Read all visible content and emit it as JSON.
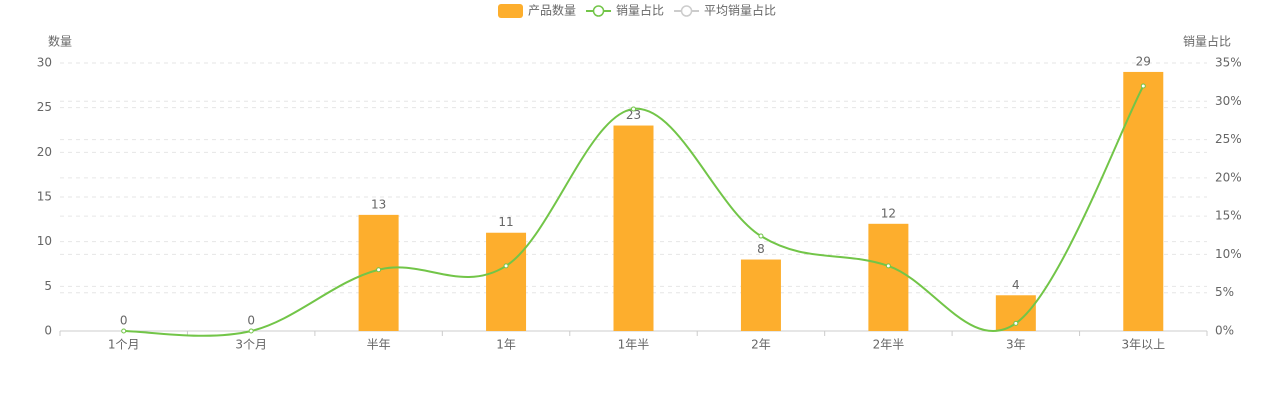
{
  "chart_data": {
    "type": "bar_line",
    "categories": [
      "1个月",
      "3个月",
      "半年",
      "1年",
      "1年半",
      "2年",
      "2年半",
      "3年",
      "3年以上"
    ],
    "series": [
      {
        "name": "产品数量",
        "type": "bar",
        "color": "#fdae2d",
        "values": [
          0,
          0,
          13,
          11,
          23,
          8,
          12,
          4,
          29
        ]
      },
      {
        "name": "销量占比",
        "type": "line",
        "axis": "y2",
        "color": "#72c548",
        "values": [
          0,
          0,
          8,
          8.5,
          29,
          12.4,
          8.5,
          1,
          32
        ]
      },
      {
        "name": "平均销量占比",
        "type": "line",
        "axis": "y2",
        "color": "#cccccc",
        "hidden": true
      }
    ],
    "y_label": "数量",
    "y2_label": "销量占比",
    "ylim": [
      0,
      30
    ],
    "yticks": [
      0,
      5,
      10,
      15,
      20,
      25,
      30
    ],
    "y2lim": [
      0,
      35
    ],
    "y2ticks": [
      {
        "value": 0,
        "label": "0%"
      },
      {
        "value": 5,
        "label": "5%"
      },
      {
        "value": 10,
        "label": "10%"
      },
      {
        "value": 15,
        "label": "15%"
      },
      {
        "value": 20,
        "label": "20%"
      },
      {
        "value": 25,
        "label": "25%"
      },
      {
        "value": 30,
        "label": "30%"
      },
      {
        "value": 35,
        "label": "35%"
      }
    ],
    "grid": true,
    "legend": "top"
  }
}
